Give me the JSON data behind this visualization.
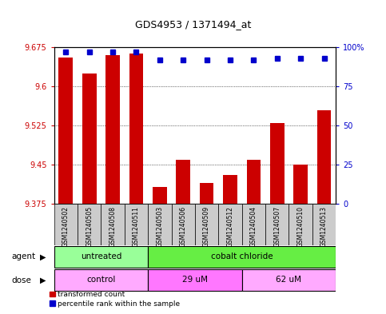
{
  "title": "GDS4953 / 1371494_at",
  "samples": [
    "GSM1240502",
    "GSM1240505",
    "GSM1240508",
    "GSM1240511",
    "GSM1240503",
    "GSM1240506",
    "GSM1240509",
    "GSM1240512",
    "GSM1240504",
    "GSM1240507",
    "GSM1240510",
    "GSM1240513"
  ],
  "red_values": [
    9.655,
    9.625,
    9.66,
    9.662,
    9.408,
    9.46,
    9.415,
    9.43,
    9.46,
    9.53,
    9.45,
    9.555
  ],
  "blue_values": [
    97,
    97,
    97,
    97,
    92,
    92,
    92,
    92,
    92,
    93,
    93,
    93
  ],
  "ymin": 9.375,
  "ymax": 9.675,
  "yticks": [
    9.375,
    9.45,
    9.525,
    9.6,
    9.675
  ],
  "y2min": 0,
  "y2max": 100,
  "y2ticks": [
    0,
    25,
    50,
    75,
    100
  ],
  "bar_color": "#CC0000",
  "dot_color": "#0000CC",
  "agent_groups": [
    {
      "label": "untreated",
      "start": 0,
      "end": 4,
      "color": "#99FF99"
    },
    {
      "label": "cobalt chloride",
      "start": 4,
      "end": 12,
      "color": "#66EE44"
    }
  ],
  "dose_groups": [
    {
      "label": "control",
      "start": 0,
      "end": 4,
      "color": "#FFAAFF"
    },
    {
      "label": "29 uM",
      "start": 4,
      "end": 8,
      "color": "#FF77FF"
    },
    {
      "label": "62 uM",
      "start": 8,
      "end": 12,
      "color": "#FFAAFF"
    }
  ],
  "legend_items": [
    {
      "label": "transformed count",
      "color": "#CC0000"
    },
    {
      "label": "percentile rank within the sample",
      "color": "#0000CC"
    }
  ],
  "agent_label": "agent",
  "dose_label": "dose",
  "bg_color": "#CCCCCC",
  "plot_bg_color": "#FFFFFF",
  "tick_color_left": "#CC0000",
  "tick_color_right": "#0000CC",
  "bar_width": 0.6
}
